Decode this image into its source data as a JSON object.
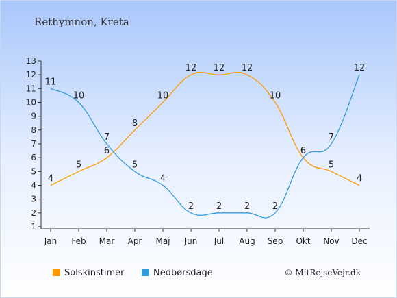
{
  "chart_data": {
    "type": "line",
    "title": "Rethymnon, Kreta",
    "categories": [
      "Jan",
      "Feb",
      "Mar",
      "Apr",
      "Maj",
      "Jun",
      "Jul",
      "Aug",
      "Sep",
      "Okt",
      "Nov",
      "Dec"
    ],
    "series": [
      {
        "name": "Solskinstimer",
        "color": "#ff9900",
        "values": [
          4,
          5,
          6,
          8,
          10,
          12,
          12,
          12,
          10,
          6,
          5,
          4
        ]
      },
      {
        "name": "Nedbørsdage",
        "color": "#3399dd",
        "values": [
          11,
          10,
          7,
          5,
          4,
          2,
          2,
          2,
          2,
          6,
          7,
          12
        ]
      }
    ],
    "ylim": [
      1,
      13
    ],
    "yticks": [
      1,
      2,
      3,
      4,
      5,
      6,
      7,
      8,
      9,
      10,
      11,
      12,
      13
    ],
    "xlabel": "",
    "ylabel": "",
    "grid": false,
    "legend_position": "bottom",
    "credit": "© MitRejseVejr.dk"
  }
}
